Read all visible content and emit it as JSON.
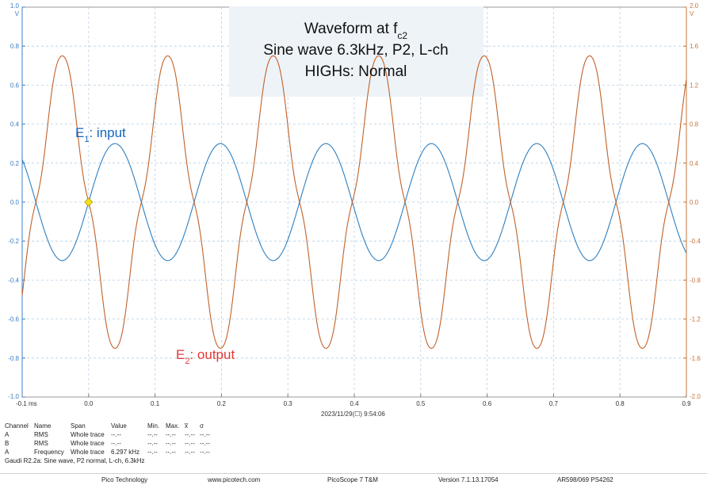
{
  "chart_data": {
    "type": "line",
    "title_lines": [
      "Waveform at f",
      "Sine wave 6.3kHz, P2, L-ch",
      "HIGHs: Normal"
    ],
    "title_subscript": "c2",
    "x_ticks": [
      "-0.1 ms",
      "0.0",
      "0.1",
      "0.2",
      "0.3",
      "0.4",
      "0.5",
      "0.6",
      "0.7",
      "0.8",
      "0.9"
    ],
    "xlim": [
      -0.1,
      0.9
    ],
    "left_axis": {
      "unit": "V",
      "ylim": [
        -1.0,
        1.0
      ],
      "ticks": [
        "1.0",
        "0.8",
        "0.6",
        "0.4",
        "0.2",
        "0.0",
        "-0.2",
        "-0.4",
        "-0.6",
        "-0.8",
        "-1.0"
      ],
      "color": "#3b7fc4"
    },
    "right_axis": {
      "unit": "V",
      "ylim": [
        -2.0,
        2.0
      ],
      "ticks": [
        "2.0",
        "1.6",
        "1.2",
        "0.8",
        "0.4",
        "0.0",
        "-0.4",
        "-0.8",
        "-1.2",
        "-1.6",
        "-2.0"
      ],
      "color": "#c8733a"
    },
    "grid": true,
    "series": [
      {
        "name": "input",
        "label_base": "E",
        "label_sub": "1",
        "label_rest": ": input",
        "label_color": "#1565c0",
        "axis": "left",
        "color": "#2e7fc0",
        "waveform": "sine",
        "amplitude": 0.3,
        "frequency_khz": 6.297,
        "x": [
          -0.0397,
          0.0397,
          0.119,
          0.198,
          0.278,
          0.357,
          0.437,
          0.516,
          0.596,
          0.675,
          0.754,
          0.834
        ],
        "y": [
          -0.3,
          0.3,
          -0.3,
          0.3,
          -0.3,
          0.3,
          -0.3,
          0.3,
          -0.3,
          0.3,
          -0.3,
          0.3
        ]
      },
      {
        "name": "output",
        "label_base": "E",
        "label_sub": "2",
        "label_rest": ": output",
        "label_color": "#e53935",
        "axis": "right",
        "color": "#c0622a",
        "waveform": "sine with double-hump ripple at peaks",
        "amplitude": 1.5,
        "frequency_khz": 6.297,
        "x": [
          -0.0397,
          0.0397,
          0.119,
          0.198,
          0.278,
          0.357,
          0.437,
          0.516,
          0.596,
          0.675,
          0.754,
          0.834
        ],
        "y": [
          1.5,
          -1.5,
          1.5,
          -1.5,
          1.5,
          -1.5,
          1.5,
          -1.5,
          1.5,
          -1.5,
          1.5,
          -1.5
        ]
      }
    ],
    "trigger_marker": {
      "x": 0.0,
      "y": 0.0,
      "color": "#f2e11a"
    }
  },
  "timestamp": "2023/11/29(☐) 9:54:06",
  "measurements": {
    "headers": [
      "Channel",
      "Name",
      "Span",
      "Value",
      "Min.",
      "Max.",
      "x̅",
      "σ"
    ],
    "rows": [
      [
        "A",
        "RMS",
        "Whole trace",
        "--.--",
        "--.--",
        "--.--",
        "--.--",
        "--.--"
      ],
      [
        "B",
        "RMS",
        "Whole trace",
        "--.--",
        "--.--",
        "--.--",
        "--.--",
        "--.--"
      ],
      [
        "A",
        "Frequency",
        "Whole trace",
        "6.297 kHz",
        "--.--",
        "--.--",
        "--.--",
        "--.--"
      ]
    ]
  },
  "caption": "Gaudi R2.2a: Sine wave, P2 normal, L-ch, 6.3kHz",
  "footer": [
    "Pico Technology",
    "www.picotech.com",
    "PicoScope 7 T&M",
    "Version 7.1.13.17054",
    "AR598/069 PS4262"
  ]
}
